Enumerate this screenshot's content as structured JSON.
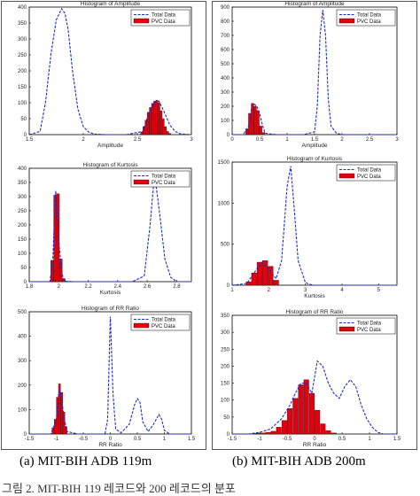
{
  "captions": {
    "a": "(a) MIT-BIH ADB 119m",
    "b": "(b) MIT-BIH ADB 200m",
    "bottom": "그림 2. MIT-BIH 119 레코드와 200 레코드의 분포"
  },
  "colors": {
    "total_line": "#1f2ccc",
    "pvc_bar": "#e0000f",
    "bar_edge": "#5a0000",
    "panel_border": "#555555"
  },
  "chart_data": [
    {
      "type": "bar",
      "id": "119-amplitude",
      "title": "Histogram of Amplitude",
      "xlabel": "Amplitude",
      "ylabel": "",
      "xlim": [
        1.5,
        3.0
      ],
      "ylim": [
        0,
        400
      ],
      "xticks": [
        "1.5",
        "2",
        "2.5",
        "3"
      ],
      "xtick_values": [
        1.5,
        2.0,
        2.5,
        3.0
      ],
      "yticks": [
        "0",
        "50",
        "100",
        "150",
        "200",
        "250",
        "300",
        "350",
        "400"
      ],
      "ytick_values": [
        0,
        50,
        100,
        150,
        200,
        250,
        300,
        350,
        400
      ],
      "legend": [
        "Total Data",
        "PVC Data"
      ],
      "legend_position": "top-right",
      "total_line": {
        "x": [
          1.5,
          1.6,
          1.65,
          1.7,
          1.75,
          1.8,
          1.83,
          1.86,
          1.9,
          1.95,
          2.0,
          2.05,
          2.1,
          2.2,
          2.4,
          2.55,
          2.6,
          2.65,
          2.7,
          2.75,
          2.8,
          2.85,
          2.9,
          3.0
        ],
        "y": [
          0,
          10,
          100,
          250,
          360,
          395,
          380,
          330,
          200,
          80,
          25,
          8,
          2,
          0,
          0,
          10,
          60,
          100,
          105,
          70,
          30,
          10,
          2,
          0
        ]
      },
      "bars": {
        "x": [
          2.54,
          2.56,
          2.58,
          2.6,
          2.62,
          2.64,
          2.66,
          2.68,
          2.7,
          2.72,
          2.74,
          2.76,
          2.78,
          2.8
        ],
        "y": [
          8,
          25,
          45,
          70,
          85,
          98,
          105,
          108,
          100,
          75,
          50,
          25,
          10,
          4
        ],
        "width": 0.018
      }
    },
    {
      "type": "bar",
      "id": "200-amplitude",
      "title": "Histogram of Amplitude",
      "xlabel": "Amplitude",
      "ylabel": "",
      "xlim": [
        0,
        3.0
      ],
      "ylim": [
        0,
        900
      ],
      "xticks": [
        "0",
        "0.5",
        "1",
        "1.5",
        "2",
        "2.5",
        "3"
      ],
      "xtick_values": [
        0,
        0.5,
        1.0,
        1.5,
        2.0,
        2.5,
        3.0
      ],
      "yticks": [
        "0",
        "100",
        "200",
        "300",
        "400",
        "500",
        "600",
        "700",
        "800",
        "900"
      ],
      "ytick_values": [
        0,
        100,
        200,
        300,
        400,
        500,
        600,
        700,
        800,
        900
      ],
      "legend": [
        "Total Data",
        "PVC Data"
      ],
      "legend_position": "top-right",
      "total_line": {
        "x": [
          0,
          0.2,
          0.3,
          0.35,
          0.4,
          0.45,
          0.5,
          0.55,
          0.6,
          0.8,
          1.3,
          1.5,
          1.55,
          1.6,
          1.65,
          1.7,
          1.75,
          1.8,
          1.9,
          2.0,
          3.0
        ],
        "y": [
          0,
          0,
          60,
          180,
          215,
          200,
          150,
          70,
          10,
          0,
          0,
          20,
          200,
          700,
          880,
          700,
          250,
          60,
          10,
          0,
          0
        ]
      },
      "bars": {
        "x": [
          0.27,
          0.32,
          0.37,
          0.42,
          0.47,
          0.52,
          0.57
        ],
        "y": [
          40,
          150,
          220,
          200,
          170,
          60,
          15
        ],
        "width": 0.045
      }
    },
    {
      "type": "bar",
      "id": "119-kurtosis",
      "title": "Histogram of Kurtosis",
      "xlabel": "Kurtosis",
      "ylabel": "",
      "xlim": [
        1.8,
        2.9
      ],
      "ylim": [
        0,
        400
      ],
      "xticks": [
        "1.8",
        "2",
        "2.2",
        "2.4",
        "2.6",
        "2.8"
      ],
      "xtick_values": [
        1.8,
        2.0,
        2.2,
        2.4,
        2.6,
        2.8
      ],
      "yticks": [
        "0",
        "50",
        "100",
        "150",
        "200",
        "250",
        "300",
        "350",
        "400"
      ],
      "ytick_values": [
        0,
        50,
        100,
        150,
        200,
        250,
        300,
        350,
        400
      ],
      "legend": [
        "Total Data",
        "PVC Data"
      ],
      "legend_position": "top-right",
      "total_line": {
        "x": [
          1.8,
          1.94,
          1.96,
          1.98,
          2.0,
          2.02,
          2.04,
          2.1,
          2.5,
          2.58,
          2.62,
          2.65,
          2.68,
          2.72,
          2.76,
          2.8,
          2.9
        ],
        "y": [
          0,
          0,
          80,
          320,
          150,
          30,
          2,
          0,
          0,
          20,
          200,
          380,
          260,
          80,
          15,
          0,
          0
        ]
      },
      "bars": {
        "x": [
          1.955,
          1.975,
          1.995,
          2.015,
          2.035
        ],
        "y": [
          75,
          305,
          310,
          80,
          10
        ],
        "width": 0.018
      }
    },
    {
      "type": "bar",
      "id": "200-kurtosis",
      "title": "Histogram of Kurtosis",
      "xlabel": "Kurtosis",
      "ylabel": "",
      "xlim": [
        1,
        5.5
      ],
      "ylim": [
        0,
        1500
      ],
      "xticks": [
        "1",
        "2",
        "3",
        "4",
        "5"
      ],
      "xtick_values": [
        1,
        2,
        3,
        4,
        5
      ],
      "yticks": [
        "0",
        "500",
        "1000",
        "1500"
      ],
      "ytick_values": [
        0,
        500,
        1000,
        1500
      ],
      "legend": [
        "Total Data",
        "PVC Data"
      ],
      "legend_position": "top-right",
      "total_line": {
        "x": [
          1.0,
          1.4,
          1.6,
          1.8,
          2.0,
          2.2,
          2.35,
          2.5,
          2.6,
          2.7,
          2.8,
          3.0,
          3.2,
          5.5
        ],
        "y": [
          0,
          20,
          150,
          280,
          200,
          80,
          300,
          1200,
          1450,
          900,
          300,
          30,
          0,
          0
        ]
      },
      "bars": {
        "x": [
          1.45,
          1.6,
          1.75,
          1.9,
          2.05,
          2.2
        ],
        "y": [
          40,
          150,
          280,
          300,
          230,
          60
        ],
        "width": 0.14
      }
    },
    {
      "type": "bar",
      "id": "119-rr-ratio",
      "title": "Histogram of RR Ratio",
      "xlabel": "RR Ratio",
      "ylabel": "",
      "xlim": [
        -1.5,
        1.5
      ],
      "ylim": [
        0,
        500
      ],
      "xticks": [
        "-1.5",
        "-1",
        "-0.5",
        "0",
        "0.5",
        "1",
        "1.5"
      ],
      "xtick_values": [
        -1.5,
        -1.0,
        -0.5,
        0,
        0.5,
        1.0,
        1.5
      ],
      "yticks": [
        "0",
        "100",
        "200",
        "300",
        "400",
        "500"
      ],
      "ytick_values": [
        0,
        100,
        200,
        300,
        400,
        500
      ],
      "legend": [
        "Total Data",
        "PVC Data"
      ],
      "legend_position": "top-right",
      "total_line": {
        "x": [
          -1.5,
          -1.1,
          -1.0,
          -0.95,
          -0.9,
          -0.85,
          -0.8,
          -0.6,
          -0.1,
          -0.05,
          0.0,
          0.05,
          0.1,
          0.2,
          0.35,
          0.45,
          0.5,
          0.55,
          0.6,
          0.7,
          0.8,
          0.9,
          0.95,
          1.0,
          1.1,
          1.5
        ],
        "y": [
          0,
          0,
          60,
          180,
          140,
          60,
          10,
          0,
          0,
          60,
          480,
          160,
          20,
          5,
          40,
          120,
          145,
          130,
          50,
          10,
          40,
          80,
          60,
          15,
          0,
          0
        ]
      },
      "bars": {
        "x": [
          -1.06,
          -1.02,
          -0.98,
          -0.94,
          -0.9,
          -0.86,
          -0.82
        ],
        "y": [
          25,
          60,
          150,
          205,
          170,
          90,
          30
        ],
        "width": 0.036
      }
    },
    {
      "type": "bar",
      "id": "200-rr-ratio",
      "title": "Histogram of RR Ratio",
      "xlabel": "RR Ratio",
      "ylabel": "",
      "xlim": [
        -1.5,
        1.5
      ],
      "ylim": [
        0,
        350
      ],
      "xticks": [
        "-1.5",
        "-1",
        "-0.5",
        "0",
        "0.5",
        "1",
        "1.5"
      ],
      "xtick_values": [
        -1.5,
        -1.0,
        -0.5,
        0,
        0.5,
        1.0,
        1.5
      ],
      "yticks": [
        "0",
        "50",
        "100",
        "150",
        "200",
        "250",
        "300",
        "350"
      ],
      "ytick_values": [
        0,
        50,
        100,
        150,
        200,
        250,
        300,
        350
      ],
      "legend": [
        "Total Data",
        "PVC Data"
      ],
      "legend_position": "top-right",
      "total_line": {
        "x": [
          -1.5,
          -1.2,
          -1.0,
          -0.8,
          -0.6,
          -0.45,
          -0.35,
          -0.25,
          -0.15,
          -0.05,
          0.05,
          0.15,
          0.25,
          0.35,
          0.45,
          0.55,
          0.65,
          0.75,
          0.85,
          0.95,
          1.05,
          1.15,
          1.25,
          1.5
        ],
        "y": [
          0,
          0,
          5,
          15,
          45,
          85,
          120,
          150,
          150,
          120,
          215,
          200,
          150,
          120,
          105,
          140,
          160,
          140,
          85,
          45,
          20,
          5,
          0,
          0
        ]
      },
      "bars": {
        "x": [
          -1.05,
          -0.95,
          -0.85,
          -0.75,
          -0.65,
          -0.55,
          -0.45,
          -0.35,
          -0.25,
          -0.15,
          -0.05,
          0.05,
          0.15,
          0.25,
          0.35
        ],
        "y": [
          2,
          3,
          5,
          8,
          20,
          40,
          75,
          105,
          145,
          160,
          120,
          70,
          30,
          10,
          3
        ],
        "width": 0.09
      }
    }
  ]
}
